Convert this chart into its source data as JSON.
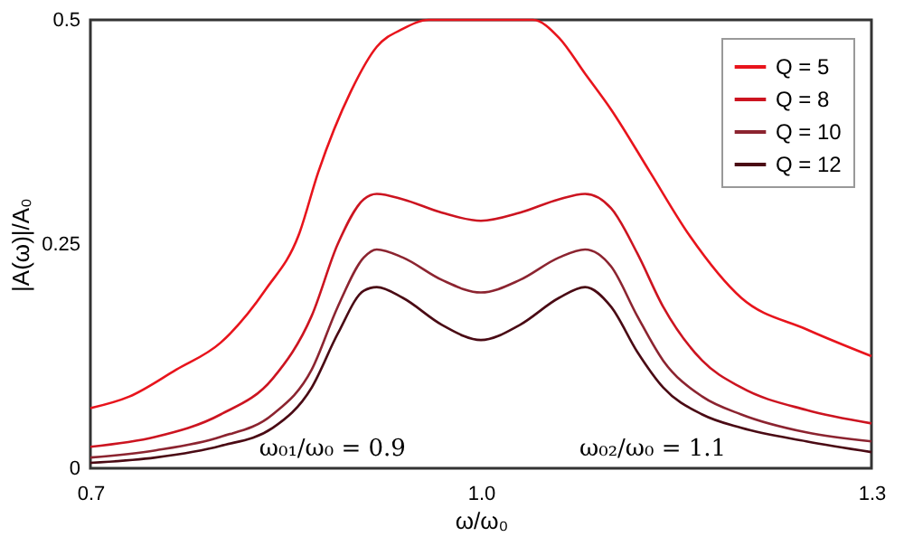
{
  "chart_data": {
    "type": "line",
    "xlabel": "ω/ω₀",
    "ylabel": "|A(ω)|/A₀",
    "xlim": [
      0.7,
      1.3
    ],
    "xticks": [
      0.7,
      {
        "value": 1.0,
        "label": "1.0"
      },
      1.3
    ],
    "ylim": [
      0,
      0.5
    ],
    "yticks": [
      0,
      0.25,
      0.5
    ],
    "grid": false,
    "legend": "top right",
    "marker": "none",
    "line_style": "solid",
    "annotations": [
      "ω₀₁/ω₀ = 0.9",
      "ω₀₂/ω₀ = 1.1"
    ],
    "x": [
      0.7,
      0.75,
      0.8,
      0.84,
      0.87,
      0.89,
      0.91,
      0.92,
      0.94,
      0.97,
      1.0,
      1.03,
      1.06,
      1.08,
      1.1,
      1.12,
      1.14,
      1.17,
      1.2,
      1.25,
      1.3
    ],
    "series": [
      {
        "name": "Q = 5",
        "color": "#e8141c",
        "x": [
          0.7,
          0.73,
          0.766,
          0.8,
          0.835,
          0.86,
          0.875,
          0.9,
          0.92,
          0.94,
          0.96,
          1.0,
          1.04,
          1.06,
          1.08,
          1.1,
          1.13,
          1.16,
          1.2,
          1.25,
          1.3
        ],
        "values": [
          0.067,
          0.08,
          0.11,
          0.14,
          0.2,
          0.26,
          0.33,
          0.42,
          0.47,
          0.49,
          0.5,
          0.5,
          0.5,
          0.48,
          0.44,
          0.4,
          0.33,
          0.26,
          0.19,
          0.155,
          0.125
        ]
      },
      {
        "name": "Q = 8",
        "color": "#cc1420",
        "values": [
          0.024,
          0.035,
          0.06,
          0.1,
          0.17,
          0.25,
          0.3,
          0.306,
          0.3,
          0.285,
          0.276,
          0.285,
          0.3,
          0.306,
          0.29,
          0.24,
          0.18,
          0.12,
          0.09,
          0.065,
          0.05
        ]
      },
      {
        "name": "Q = 10",
        "color": "#8c2430",
        "values": [
          0.012,
          0.02,
          0.035,
          0.06,
          0.11,
          0.18,
          0.235,
          0.244,
          0.235,
          0.21,
          0.196,
          0.21,
          0.235,
          0.244,
          0.225,
          0.17,
          0.12,
          0.08,
          0.06,
          0.04,
          0.03
        ]
      },
      {
        "name": "Q = 12",
        "color": "#4a0a14",
        "values": [
          0.006,
          0.012,
          0.025,
          0.045,
          0.09,
          0.15,
          0.198,
          0.202,
          0.19,
          0.16,
          0.143,
          0.16,
          0.19,
          0.202,
          0.18,
          0.13,
          0.09,
          0.06,
          0.045,
          0.03,
          0.018
        ]
      }
    ]
  }
}
